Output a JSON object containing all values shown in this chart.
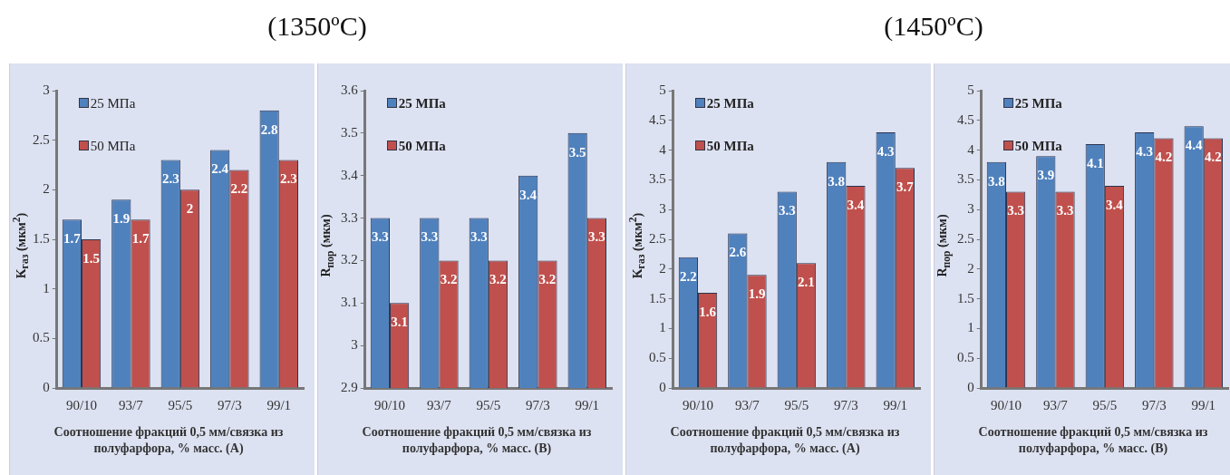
{
  "chart_data": [
    {
      "type": "bar",
      "title": "(1350ºC)",
      "ylabel": "K$_{газ}$ (мкм$^{2}$)",
      "xlabel": "Соотношение фракций 0,5 мм/связка из полуфарфора, % масс. (А)",
      "categories": [
        "90/10",
        "93/7",
        "95/5",
        "97/3",
        "99/1"
      ],
      "series": [
        {
          "name": "25 МПа",
          "color": "#4f81bd",
          "values": [
            1.7,
            1.9,
            2.3,
            2.4,
            2.8
          ]
        },
        {
          "name": "50 МПа",
          "color": "#c0504d",
          "values": [
            1.5,
            1.7,
            2,
            2.2,
            2.3
          ]
        }
      ],
      "ylim": [
        0,
        3
      ],
      "yticks": [
        0,
        0.5,
        1,
        1.5,
        2,
        2.5,
        3
      ],
      "data_labels": true,
      "legend": "top left",
      "grid": false
    },
    {
      "type": "bar",
      "ylabel": "R$_{пор}$ (мкм)",
      "xlabel": "Соотношение фракций 0,5 мм/связка из полуфарфора, % масс. (В)",
      "categories": [
        "90/10",
        "93/7",
        "95/5",
        "97/3",
        "99/1"
      ],
      "series": [
        {
          "name": "25 МПа",
          "color": "#4f81bd",
          "values": [
            3.3,
            3.3,
            3.3,
            3.4,
            3.5
          ]
        },
        {
          "name": "50 МПа",
          "color": "#c0504d",
          "values": [
            3.1,
            3.2,
            3.2,
            3.2,
            3.3
          ]
        }
      ],
      "ylim": [
        2.9,
        3.6
      ],
      "yticks": [
        2.9,
        3,
        3.1,
        3.2,
        3.3,
        3.4,
        3.5,
        3.6
      ],
      "data_labels": true,
      "legend": "top left",
      "grid": false
    },
    {
      "type": "bar",
      "title": "(1450ºC)",
      "ylabel": "K$_{газ}$ (мкм$^{2}$)",
      "xlabel": "Соотношение фракций 0,5 мм/связка из полуфарфора, % масс. (А)",
      "categories": [
        "90/10",
        "93/7",
        "95/5",
        "97/3",
        "99/1"
      ],
      "series": [
        {
          "name": "25 МПа",
          "color": "#4f81bd",
          "values": [
            2.2,
            2.6,
            3.3,
            3.8,
            4.3
          ]
        },
        {
          "name": "50 МПа",
          "color": "#c0504d",
          "values": [
            1.6,
            1.9,
            2.1,
            3.4,
            3.7
          ]
        }
      ],
      "ylim": [
        0,
        5
      ],
      "yticks": [
        0,
        0.5,
        1,
        1.5,
        2,
        2.5,
        3,
        3.5,
        4,
        4.5,
        5
      ],
      "data_labels": true,
      "legend": "top left",
      "grid": false
    },
    {
      "type": "bar",
      "ylabel": "R$_{пор}$ (мкм)",
      "xlabel": "Соотношение фракций 0,5 мм/связка из полуфарфора, % масс. (В)",
      "categories": [
        "90/10",
        "93/7",
        "95/5",
        "97/3",
        "99/1"
      ],
      "series": [
        {
          "name": "25 МПа",
          "color": "#4f81bd",
          "values": [
            3.8,
            3.9,
            4.1,
            4.3,
            4.4
          ]
        },
        {
          "name": "50 МПа",
          "color": "#c0504d",
          "values": [
            3.3,
            3.3,
            3.4,
            4.2,
            4.2
          ]
        }
      ],
      "ylim": [
        0,
        5
      ],
      "yticks": [
        0,
        0.5,
        1,
        1.5,
        2,
        2.5,
        3,
        3.5,
        4,
        4.5,
        5
      ],
      "data_labels": true,
      "legend": "top left",
      "grid": false
    }
  ]
}
